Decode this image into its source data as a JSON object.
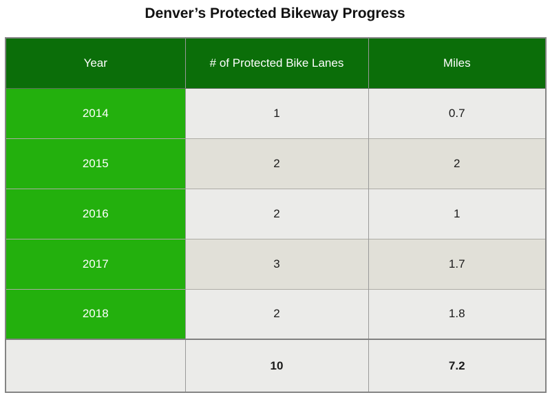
{
  "title": "Denver’s Protected Bikeway Progress",
  "table": {
    "columns": [
      "Year",
      "# of Protected Bike Lanes",
      "Miles"
    ],
    "rows": [
      {
        "year": "2014",
        "lanes": "1",
        "miles": "0.7"
      },
      {
        "year": "2015",
        "lanes": "2",
        "miles": "2"
      },
      {
        "year": "2016",
        "lanes": "2",
        "miles": "1"
      },
      {
        "year": "2017",
        "lanes": "3",
        "miles": "1.7"
      },
      {
        "year": "2018",
        "lanes": "2",
        "miles": "1.8"
      }
    ],
    "totals": {
      "lanes": "10",
      "miles": "7.2"
    }
  },
  "colors": {
    "header_green": "#0B6E09",
    "year_green": "#23B00D",
    "row_light": "#EBEBE9",
    "row_beige": "#E1E0D8",
    "outer_border": "#848484",
    "inner_border": "#999999",
    "text_dark": "#1A1A1A",
    "text_white": "#FFFFFF"
  },
  "chart_data": {
    "type": "table",
    "title": "Denver’s Protected Bikeway Progress",
    "columns": [
      "Year",
      "# of Protected Bike Lanes",
      "Miles"
    ],
    "rows": [
      [
        "2014",
        1,
        0.7
      ],
      [
        "2015",
        2,
        2
      ],
      [
        "2016",
        2,
        1
      ],
      [
        "2017",
        3,
        1.7
      ],
      [
        "2018",
        2,
        1.8
      ]
    ],
    "totals": [
      "",
      10,
      7.2
    ]
  }
}
